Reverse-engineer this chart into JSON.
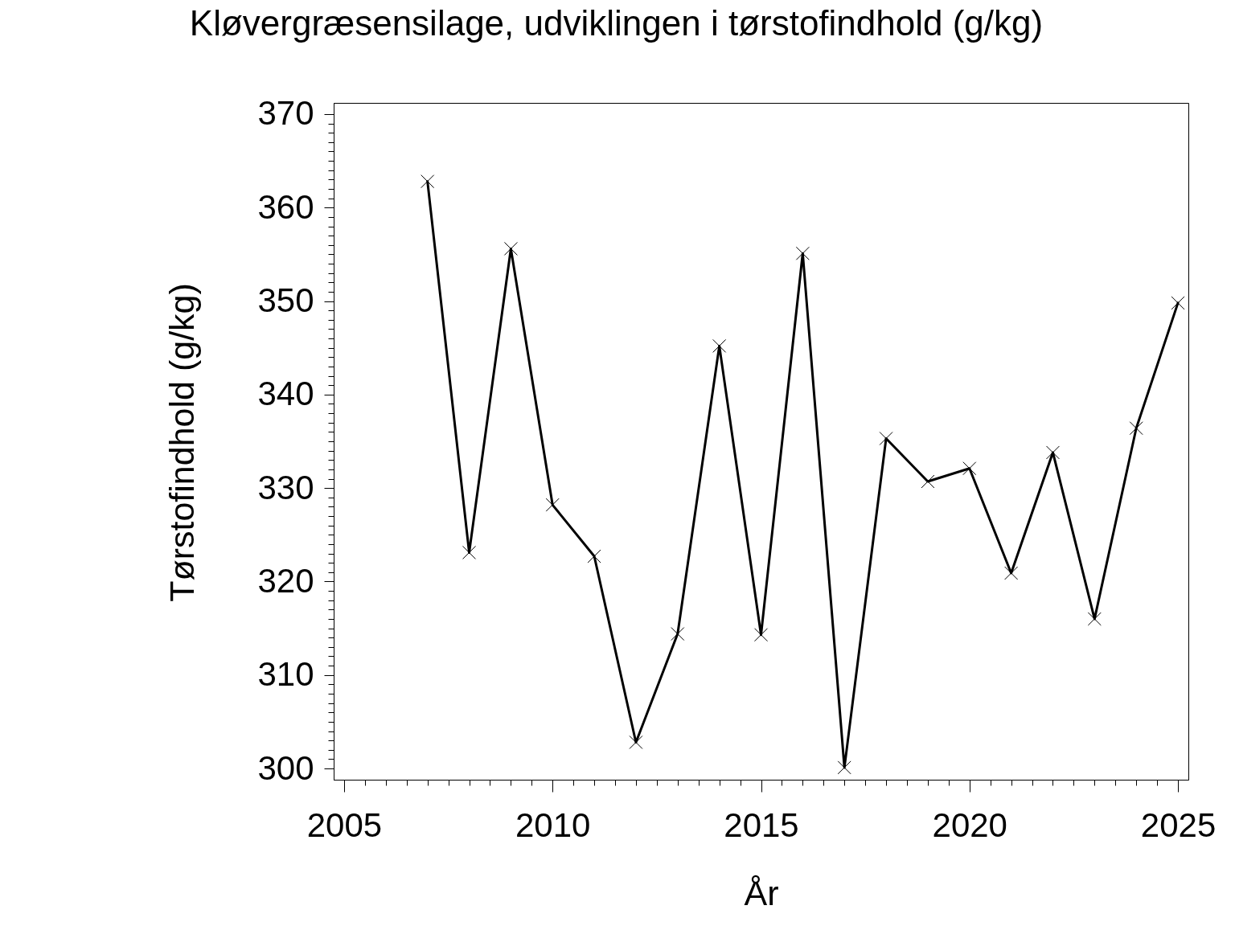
{
  "chart_data": {
    "type": "line",
    "title": "Kløvergræsensilage, udviklingen i tørstofindhold (g/kg)",
    "xlabel": "År",
    "ylabel": "Tørstofindhold (g/kg)",
    "x": [
      2007,
      2008,
      2009,
      2010,
      2011,
      2012,
      2013,
      2014,
      2015,
      2016,
      2017,
      2018,
      2019,
      2020,
      2021,
      2022,
      2023,
      2024,
      2025
    ],
    "series": [
      {
        "color": "#000000",
        "values": [
          362.8,
          323.1,
          355.6,
          328.2,
          322.7,
          302.8,
          314.4,
          345.2,
          314.3,
          355.1,
          300.1,
          335.3,
          330.7,
          332.1,
          320.9,
          333.8,
          316.0,
          336.4,
          349.8
        ]
      }
    ],
    "xlim": [
      2004.75,
      2025.25
    ],
    "ylim": [
      298.8,
      371.2
    ],
    "xticks": [
      2005,
      {
        "value": 2005.5,
        "label": null
      },
      {
        "value": 2006,
        "label": null
      },
      {
        "value": 2006.5,
        "label": null
      },
      {
        "value": 2007,
        "label": null
      },
      {
        "value": 2007.5,
        "label": null
      },
      {
        "value": 2008,
        "label": null
      },
      {
        "value": 2008.5,
        "label": null
      },
      {
        "value": 2009,
        "label": null
      },
      {
        "value": 2009.5,
        "label": null
      },
      2010,
      {
        "value": 2010.5,
        "label": null
      },
      {
        "value": 2011,
        "label": null
      },
      {
        "value": 2011.5,
        "label": null
      },
      {
        "value": 2012,
        "label": null
      },
      {
        "value": 2012.5,
        "label": null
      },
      {
        "value": 2013,
        "label": null
      },
      {
        "value": 2013.5,
        "label": null
      },
      {
        "value": 2014,
        "label": null
      },
      {
        "value": 2014.5,
        "label": null
      },
      2015,
      {
        "value": 2015.5,
        "label": null
      },
      {
        "value": 2016,
        "label": null
      },
      {
        "value": 2016.5,
        "label": null
      },
      {
        "value": 2017,
        "label": null
      },
      {
        "value": 2017.5,
        "label": null
      },
      {
        "value": 2018,
        "label": null
      },
      {
        "value": 2018.5,
        "label": null
      },
      {
        "value": 2019,
        "label": null
      },
      {
        "value": 2019.5,
        "label": null
      },
      2020,
      {
        "value": 2020.5,
        "label": null
      },
      {
        "value": 2021,
        "label": null
      },
      {
        "value": 2021.5,
        "label": null
      },
      {
        "value": 2022,
        "label": null
      },
      {
        "value": 2022.5,
        "label": null
      },
      {
        "value": 2023,
        "label": null
      },
      {
        "value": 2023.5,
        "label": null
      },
      {
        "value": 2024,
        "label": null
      },
      {
        "value": 2024.5,
        "label": null
      },
      2025
    ],
    "yticks": [
      300,
      {
        "value": 301,
        "label": null
      },
      {
        "value": 302,
        "label": null
      },
      {
        "value": 303,
        "label": null
      },
      {
        "value": 304,
        "label": null
      },
      {
        "value": 305,
        "label": null
      },
      {
        "value": 306,
        "label": null
      },
      {
        "value": 307,
        "label": null
      },
      {
        "value": 308,
        "label": null
      },
      {
        "value": 309,
        "label": null
      },
      310,
      {
        "value": 311,
        "label": null
      },
      {
        "value": 312,
        "label": null
      },
      {
        "value": 313,
        "label": null
      },
      {
        "value": 314,
        "label": null
      },
      {
        "value": 315,
        "label": null
      },
      {
        "value": 316,
        "label": null
      },
      {
        "value": 317,
        "label": null
      },
      {
        "value": 318,
        "label": null
      },
      {
        "value": 319,
        "label": null
      },
      320,
      {
        "value": 321,
        "label": null
      },
      {
        "value": 322,
        "label": null
      },
      {
        "value": 323,
        "label": null
      },
      {
        "value": 324,
        "label": null
      },
      {
        "value": 325,
        "label": null
      },
      {
        "value": 326,
        "label": null
      },
      {
        "value": 327,
        "label": null
      },
      {
        "value": 328,
        "label": null
      },
      {
        "value": 329,
        "label": null
      },
      330,
      {
        "value": 331,
        "label": null
      },
      {
        "value": 332,
        "label": null
      },
      {
        "value": 333,
        "label": null
      },
      {
        "value": 334,
        "label": null
      },
      {
        "value": 335,
        "label": null
      },
      {
        "value": 336,
        "label": null
      },
      {
        "value": 337,
        "label": null
      },
      {
        "value": 338,
        "label": null
      },
      {
        "value": 339,
        "label": null
      },
      340,
      {
        "value": 341,
        "label": null
      },
      {
        "value": 342,
        "label": null
      },
      {
        "value": 343,
        "label": null
      },
      {
        "value": 344,
        "label": null
      },
      {
        "value": 345,
        "label": null
      },
      {
        "value": 346,
        "label": null
      },
      {
        "value": 347,
        "label": null
      },
      {
        "value": 348,
        "label": null
      },
      {
        "value": 349,
        "label": null
      },
      350,
      {
        "value": 351,
        "label": null
      },
      {
        "value": 352,
        "label": null
      },
      {
        "value": 353,
        "label": null
      },
      {
        "value": 354,
        "label": null
      },
      {
        "value": 355,
        "label": null
      },
      {
        "value": 356,
        "label": null
      },
      {
        "value": 357,
        "label": null
      },
      {
        "value": 358,
        "label": null
      },
      {
        "value": 359,
        "label": null
      },
      360,
      {
        "value": 361,
        "label": null
      },
      {
        "value": 362,
        "label": null
      },
      {
        "value": 363,
        "label": null
      },
      {
        "value": 364,
        "label": null
      },
      {
        "value": 365,
        "label": null
      },
      {
        "value": 366,
        "label": null
      },
      {
        "value": 367,
        "label": null
      },
      {
        "value": 368,
        "label": null
      },
      {
        "value": 369,
        "label": null
      },
      370
    ],
    "grid": false,
    "legend": false,
    "marker": "cross",
    "line_style": "solid"
  }
}
